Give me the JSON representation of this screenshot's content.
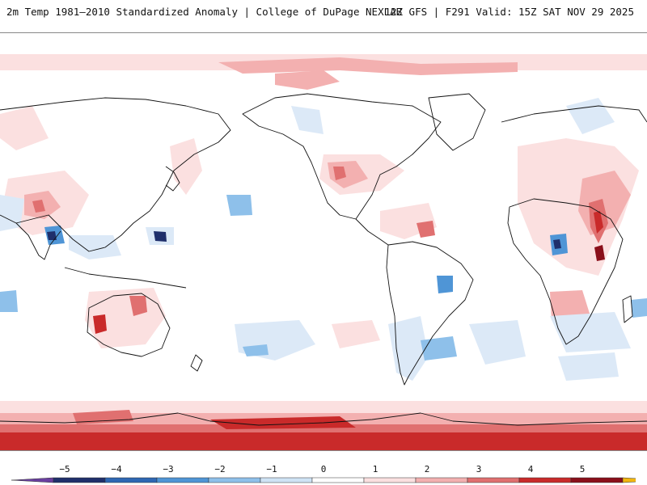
{
  "header": {
    "title": "2m Temp 1981–2010 Standardized Anomaly | College of DuPage NEXLAB",
    "valid": "12Z GFS | F291 Valid: 15Z SAT NOV 29 2025"
  },
  "legend": {
    "ticks": [
      "−5",
      "−4",
      "−3",
      "−2",
      "−1",
      "0",
      "1",
      "2",
      "3",
      "4",
      "5"
    ],
    "colors": [
      "#6a3fa0",
      "#1f2f6b",
      "#2e67b3",
      "#4f95d6",
      "#8ec0ea",
      "#cfe3f5",
      "#ffffff",
      "#fbe0e0",
      "#f3b0b0",
      "#e07070",
      "#c92a2a",
      "#8a0f1a",
      "#f2b60f"
    ]
  },
  "colors": {
    "coast": "#111111",
    "warm_light": "#fbe0e0",
    "warm_mid": "#f3b0b0",
    "warm_strong": "#e07070",
    "warm_deep": "#c92a2a",
    "cold_light": "#dce9f7",
    "cold_mid": "#8ec0ea",
    "cold_strong": "#4f95d6",
    "cold_deep": "#1f2f6b"
  }
}
